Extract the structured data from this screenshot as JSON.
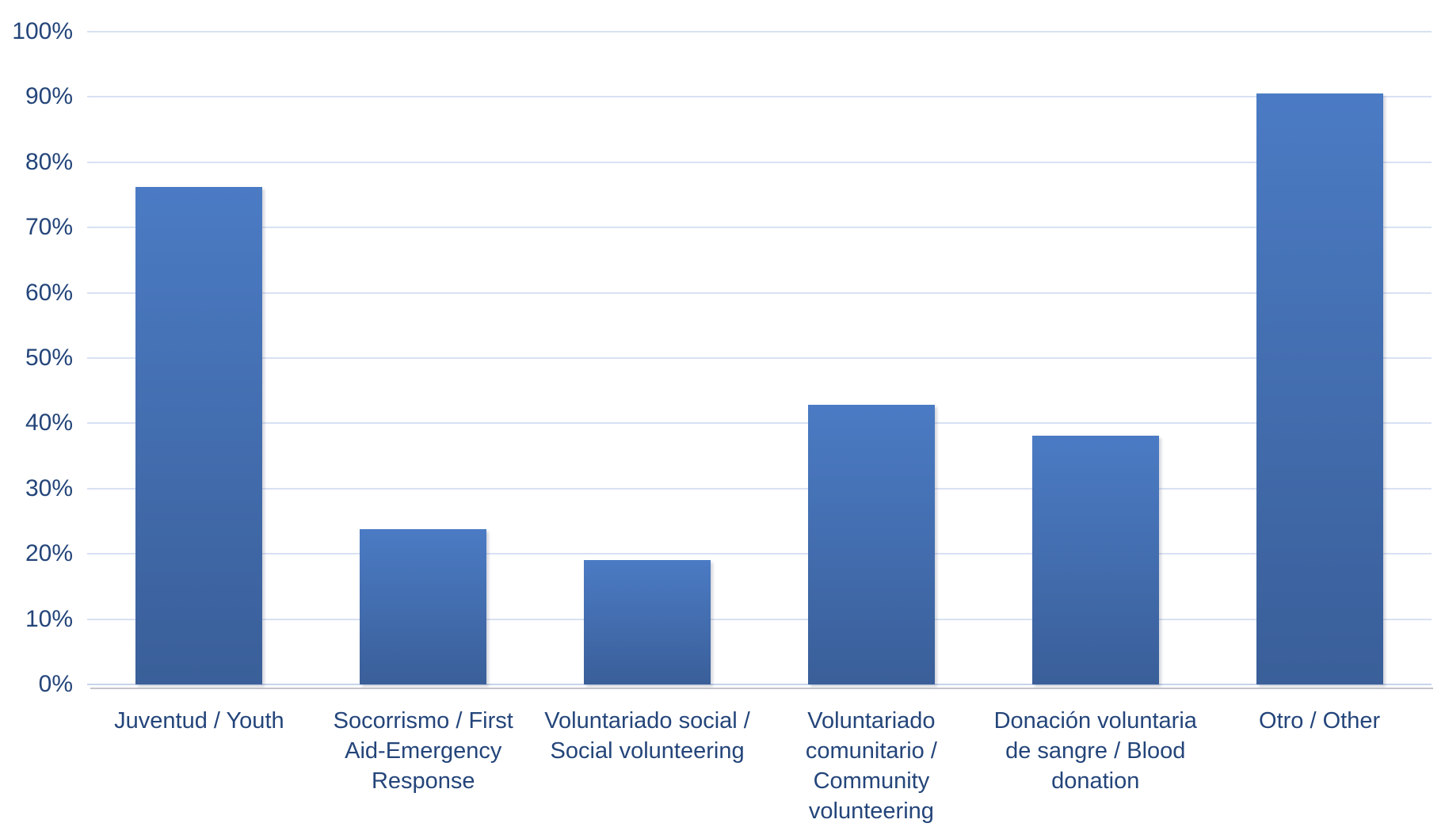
{
  "chart_data": {
    "type": "bar",
    "title": "",
    "xlabel": "",
    "ylabel": "",
    "categories": [
      "Juventud / Youth",
      "Socorrismo / First Aid-Emergency Response",
      "Voluntariado social / Social volunteering",
      "Voluntariado comunitario / Community volunteering",
      "Donación voluntaria de sangre / Blood donation",
      "Otro / Other"
    ],
    "category_lines": [
      [
        "Juventud / Youth"
      ],
      [
        "Socorrismo / First",
        "Aid-Emergency",
        "Response"
      ],
      [
        "Voluntariado social /",
        "Social volunteering"
      ],
      [
        "Voluntariado",
        "comunitario /",
        "Community",
        "volunteering"
      ],
      [
        "Donación voluntaria",
        "de sangre / Blood",
        "donation"
      ],
      [
        "Otro / Other"
      ]
    ],
    "category_slugs": [
      "juventud-youth",
      "socorrismo-first-aid-emergency-response",
      "voluntariado-social",
      "voluntariado-comunitario",
      "donacion-voluntaria-de-sangre",
      "otro-other"
    ],
    "values": [
      76.2,
      23.8,
      19.0,
      42.9,
      38.1,
      90.5
    ],
    "value_unit": "%",
    "ylim": [
      0,
      100
    ],
    "ytick_step": 10,
    "ytick_labels": [
      "100%",
      "90%",
      "80%",
      "70%",
      "60%",
      "50%",
      "40%",
      "30%",
      "20%",
      "10%",
      "0%"
    ],
    "grid": "horizontal",
    "legend": "none",
    "colors": {
      "bar_gradient_top": "#4b7bc4",
      "bar_gradient_bottom": "#3a5f99",
      "axis_text": "#24457a",
      "gridline": "#d8e1f3",
      "baseline": "#c7d4ec",
      "baseline_shadow": "#c3c5ca",
      "background": "#ffffff"
    }
  }
}
